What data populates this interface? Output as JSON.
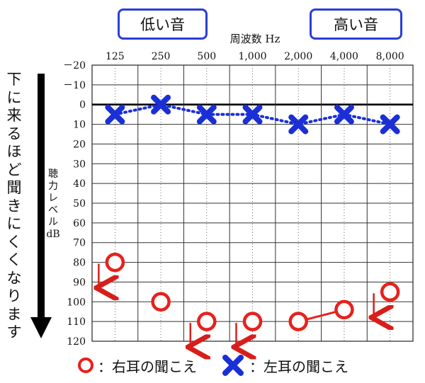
{
  "chart_data": {
    "type": "line",
    "x_title": "周波数 Hz",
    "y_title": "聴力レベルdB",
    "categories": [
      "125",
      "250",
      "500",
      "1,000",
      "2,000",
      "4,000",
      "8,000"
    ],
    "ylim": [
      -20,
      120
    ],
    "y_inverted": true,
    "y_ticks": [
      "－20",
      "－10",
      "0",
      "10",
      "20",
      "30",
      "40",
      "50",
      "60",
      "70",
      "80",
      "90",
      "100",
      "110",
      "120"
    ],
    "series": [
      {
        "name": "右耳の聞こえ",
        "marker": "circle",
        "color": "#e8201c",
        "values": [
          80,
          100,
          110,
          110,
          110,
          104,
          95
        ],
        "no_response": [
          true,
          false,
          true,
          true,
          false,
          false,
          true
        ],
        "connect": [
          [
            4,
            5
          ]
        ]
      },
      {
        "name": "左耳の聞こえ",
        "marker": "x",
        "color": "#1a2fd6",
        "line_style": "dotted",
        "values": [
          5,
          0,
          5,
          5,
          10,
          5,
          10
        ]
      }
    ],
    "grid": true,
    "legend_position": "bottom"
  },
  "tags": {
    "low": "低い音",
    "high": "高い音"
  },
  "side_note": "下に来るほど聞きにくくなります"
}
